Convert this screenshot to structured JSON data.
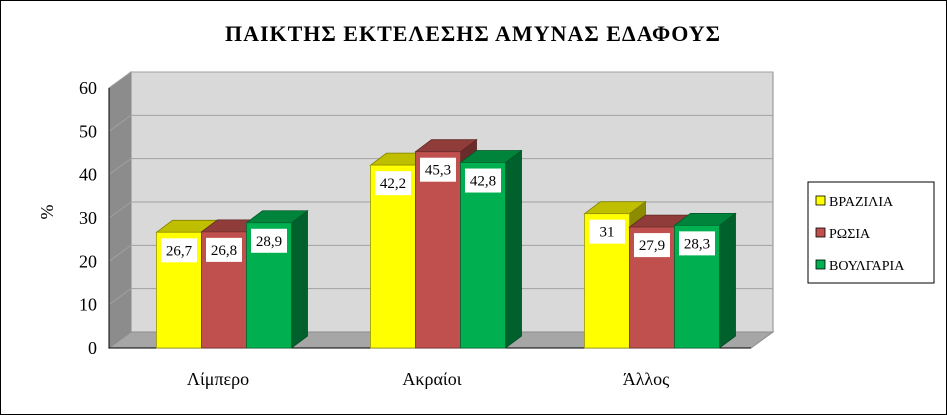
{
  "chart_data": {
    "type": "bar",
    "title": "ΠΑΙΚΤΗΣ ΕΚΤΕΛΕΣΗΣ ΑΜΥΝΑΣ ΕΔΑΦΟΥΣ",
    "xlabel": "",
    "ylabel": "%",
    "ylim": [
      0,
      60
    ],
    "yticks": [
      "0",
      "10",
      "20",
      "30",
      "40",
      "50",
      "60"
    ],
    "categories": [
      "Λίμπερο",
      "Ακραίοι",
      "Άλλος"
    ],
    "series": [
      {
        "name": "ΒΡΑΖΙΛΙΑ",
        "values": [
          26.7,
          42.2,
          31
        ],
        "labels": [
          "26,7",
          "42,2",
          "31"
        ],
        "color": "#ffff00"
      },
      {
        "name": "ΡΩΣΙΑ",
        "values": [
          26.8,
          45.3,
          27.9
        ],
        "labels": [
          "26,8",
          "45,3",
          "27,9"
        ],
        "color": "#c0504d"
      },
      {
        "name": "ΒΟΥΛΓΑΡΙΑ",
        "values": [
          28.9,
          42.8,
          28.3
        ],
        "labels": [
          "28,9",
          "42,8",
          "28,3"
        ],
        "color": "#00b050"
      }
    ],
    "grid": true,
    "legend_position": "right",
    "style": "3d-clustered-column"
  }
}
